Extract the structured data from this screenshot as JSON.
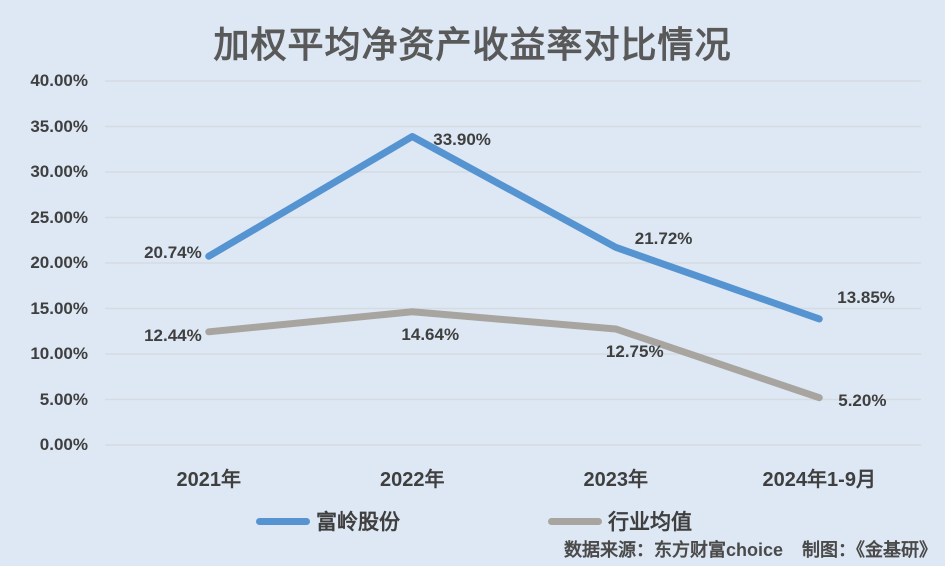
{
  "title": "加权平均净资产收益率对比情况",
  "chart_data": {
    "type": "line",
    "title": "加权平均净资产收益率对比情况",
    "categories": [
      "2021年",
      "2022年",
      "2023年",
      "2024年1-9月"
    ],
    "series": [
      {
        "name": "富岭股份",
        "color": "#5593d1",
        "values": [
          20.74,
          33.9,
          21.72,
          13.85
        ],
        "labels": [
          "20.74%",
          "33.90%",
          "21.72%",
          "13.85%"
        ]
      },
      {
        "name": "行业均值",
        "color": "#a8a5a0",
        "values": [
          12.44,
          14.64,
          12.75,
          5.2
        ],
        "labels": [
          "12.44%",
          "14.64%",
          "12.75%",
          "5.20%"
        ]
      }
    ],
    "xlabel": "",
    "ylabel": "",
    "ylim": [
      0,
      40
    ],
    "ytick_step": 5,
    "ytick_labels": [
      "0.00%",
      "5.00%",
      "10.00%",
      "15.00%",
      "20.00%",
      "25.00%",
      "30.00%",
      "35.00%",
      "40.00%"
    ],
    "grid": true,
    "legend_position": "bottom"
  },
  "footer": {
    "source_label": "数据来源：东方财富choice",
    "credit_label": "制图：《金基研》"
  },
  "colors": {
    "background": "#dde8f4",
    "gridline": "#d6dbe0",
    "title_text": "#595959",
    "label_text": "#3f3f3f",
    "series_1": "#5593d1",
    "series_2": "#a8a5a0"
  }
}
